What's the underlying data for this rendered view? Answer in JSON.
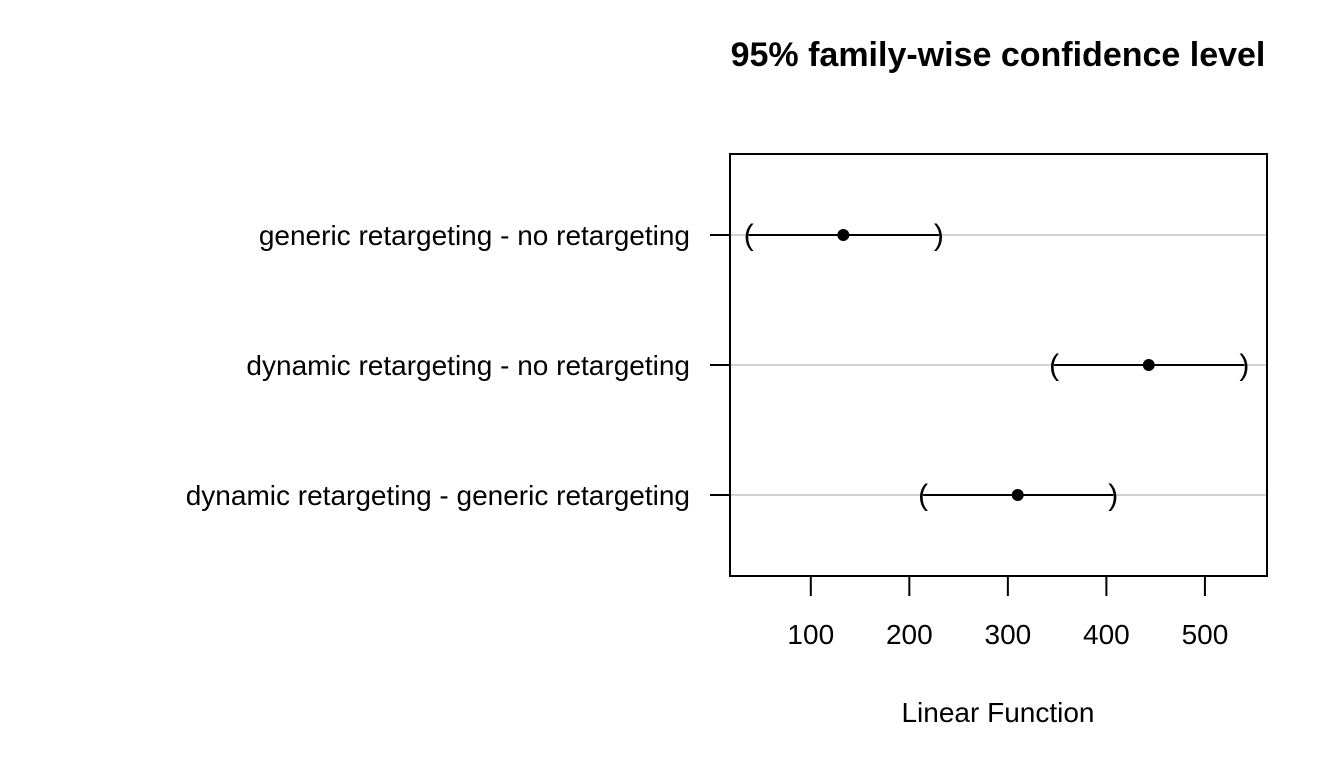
{
  "chart_data": {
    "type": "scatter",
    "title": "95% family-wise confidence level",
    "xlabel": "Linear Function",
    "ylabel": "",
    "xlim": [
      18,
      563
    ],
    "xticks": [
      100,
      200,
      300,
      400,
      500
    ],
    "grid": "horizontal",
    "colors": {
      "estimate": "#000000",
      "interval": "#000000",
      "gridline": "#d3d3d3",
      "frame": "#000000"
    },
    "comparisons": [
      {
        "label": "generic retargeting - no retargeting",
        "estimate": 133,
        "lower": 37,
        "upper": 230
      },
      {
        "label": "dynamic retargeting - no retargeting",
        "estimate": 443,
        "lower": 347,
        "upper": 540
      },
      {
        "label": "dynamic retargeting - generic retargeting",
        "estimate": 310,
        "lower": 214,
        "upper": 407
      }
    ]
  }
}
